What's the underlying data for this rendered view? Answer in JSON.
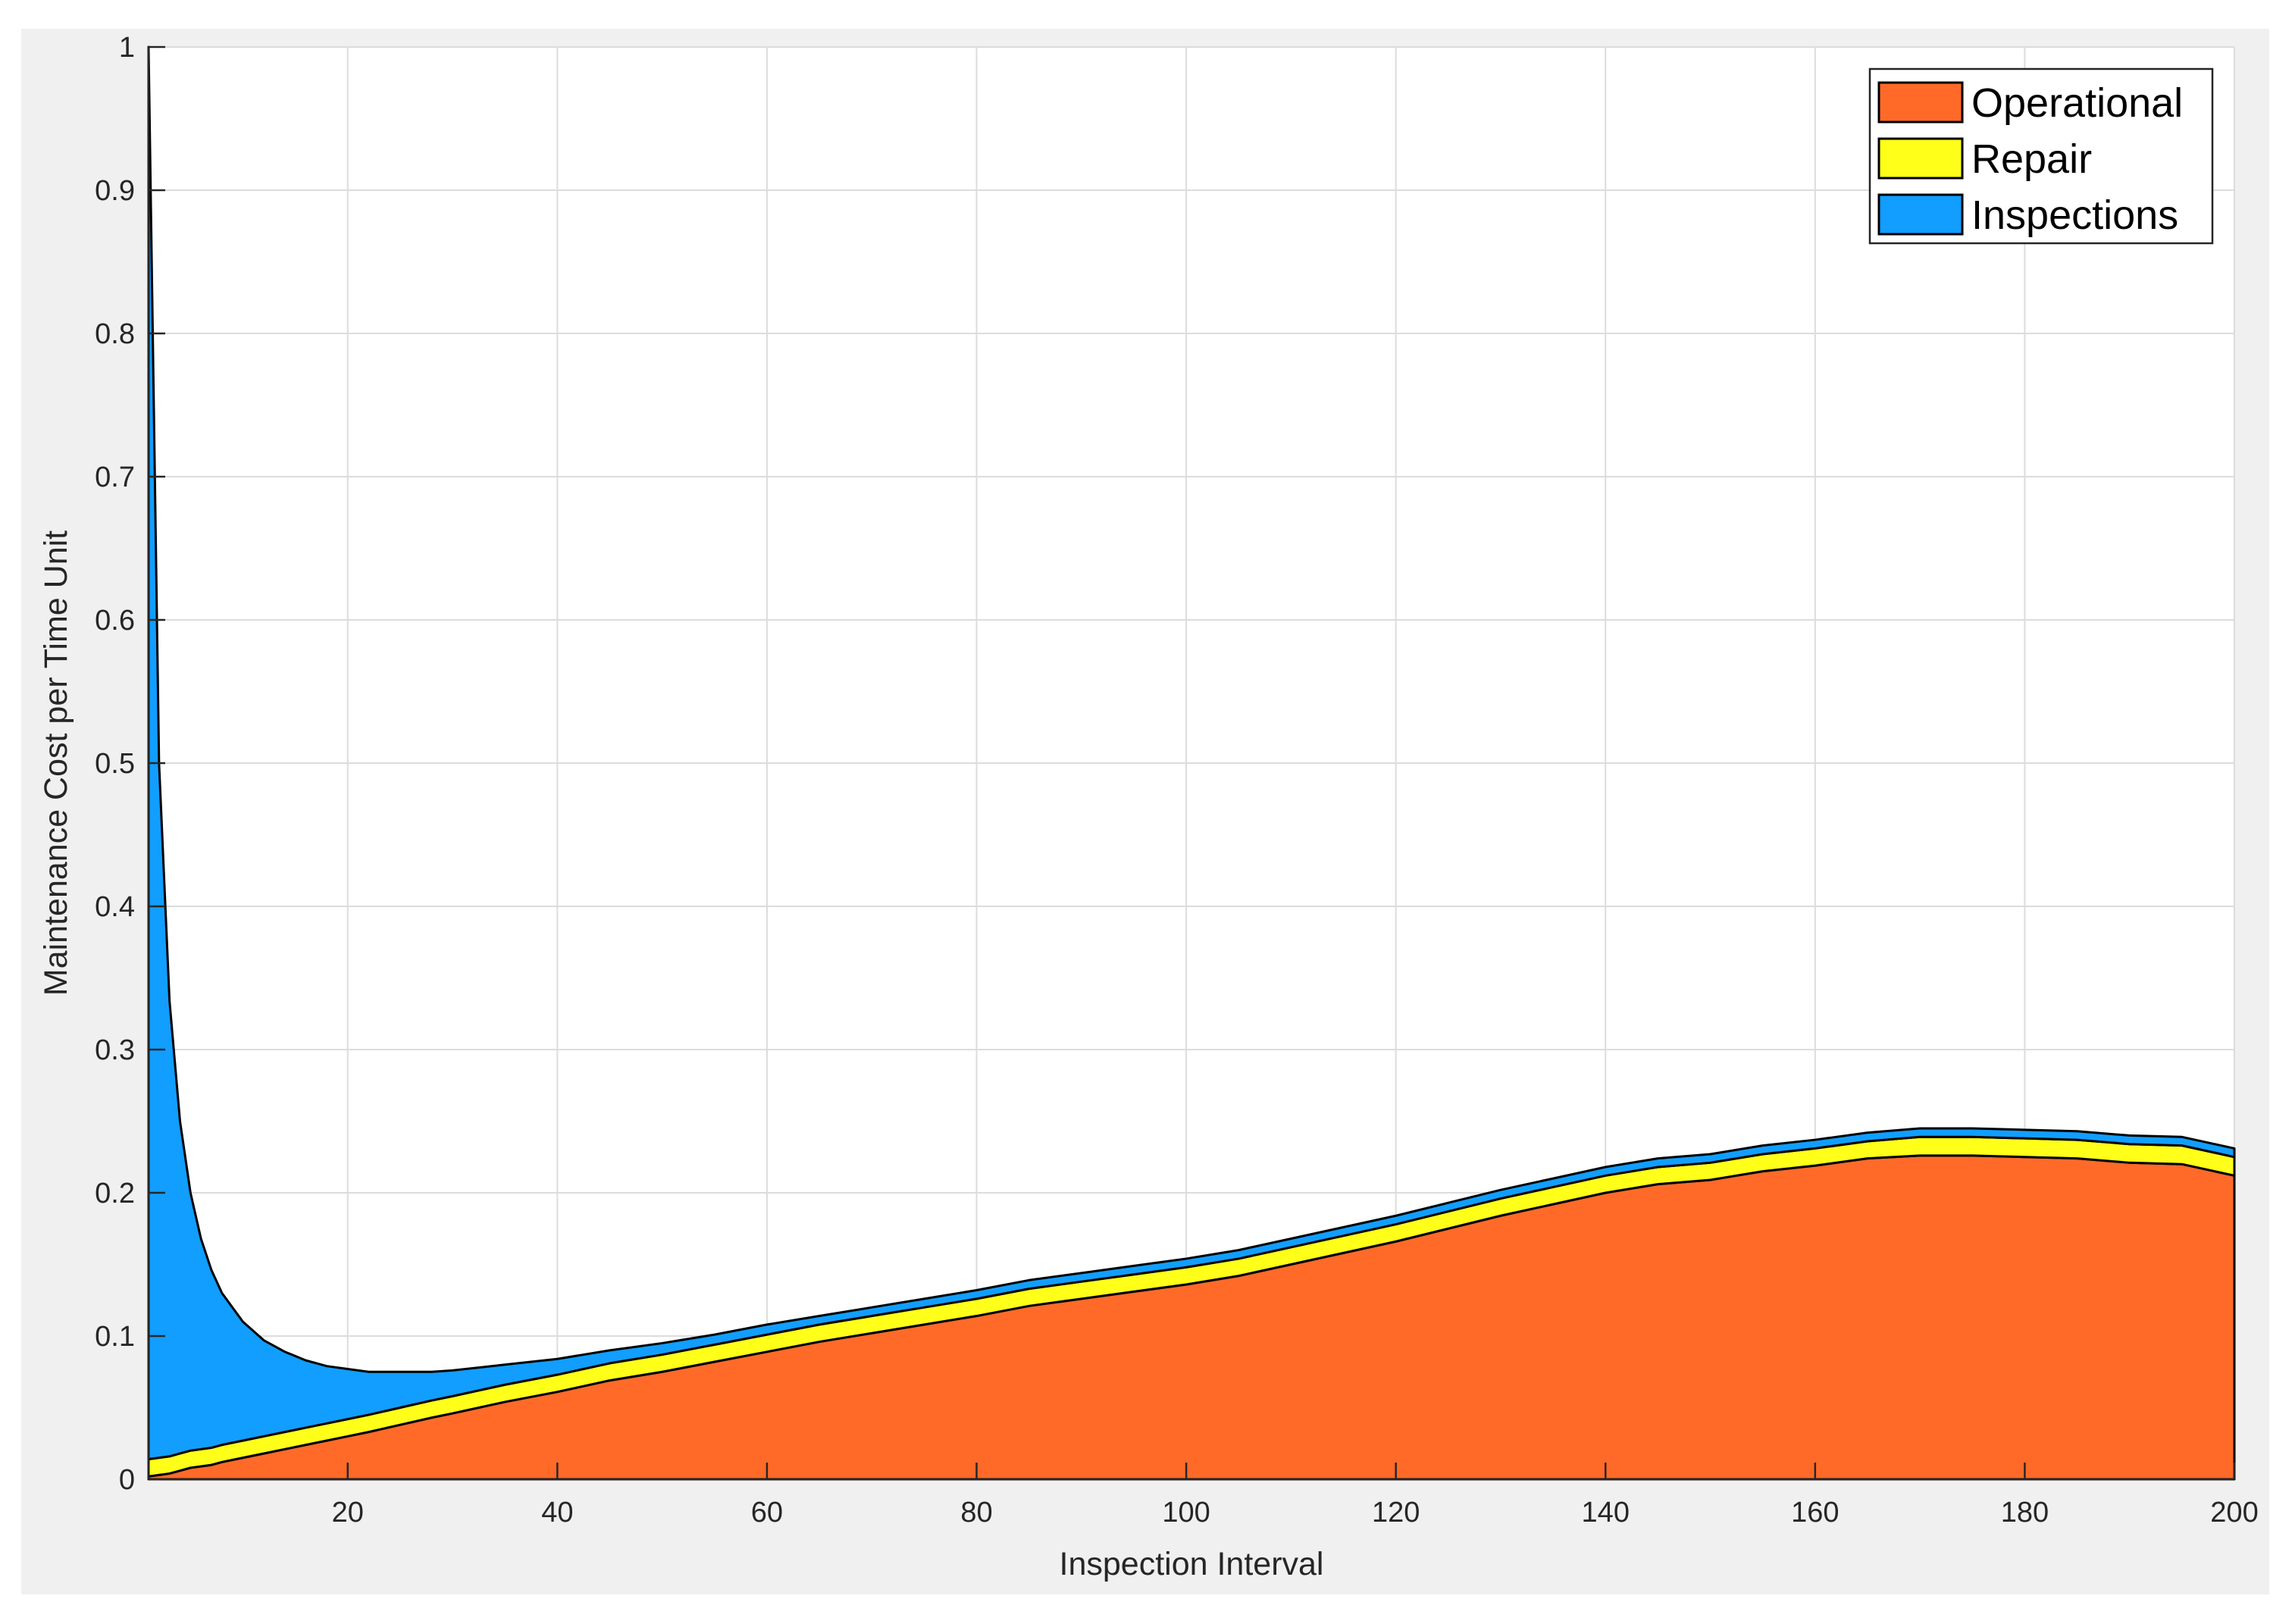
{
  "chart_data": {
    "type": "area",
    "stacked": true,
    "xlabel": "Inspection Interval",
    "ylabel": "Maintenance Cost per Time Unit",
    "xlim": [
      1,
      200
    ],
    "ylim": [
      0,
      1
    ],
    "xticks": [
      20,
      40,
      60,
      80,
      100,
      120,
      140,
      160,
      180,
      200
    ],
    "yticks": [
      0,
      0.1,
      0.2,
      0.3,
      0.4,
      0.5,
      0.6,
      0.7,
      0.8,
      0.9,
      1
    ],
    "ytick_labels": [
      "0",
      "0.1",
      "0.2",
      "0.3",
      "0.4",
      "0.5",
      "0.6",
      "0.7",
      "0.8",
      "0.9",
      "1"
    ],
    "grid": true,
    "legend_position": "top-right",
    "x": [
      1,
      2,
      3,
      4,
      5,
      6,
      7,
      8,
      10,
      12,
      14,
      16,
      18,
      20,
      22,
      25,
      28,
      30,
      35,
      40,
      45,
      50,
      55,
      60,
      65,
      70,
      75,
      80,
      85,
      90,
      95,
      100,
      105,
      110,
      115,
      120,
      125,
      130,
      135,
      140,
      145,
      150,
      155,
      160,
      165,
      170,
      175,
      180,
      185,
      190,
      195,
      200
    ],
    "series": [
      {
        "name": "Operational",
        "color": "#ff6a29",
        "values": [
          0.002,
          0.003,
          0.004,
          0.006,
          0.008,
          0.009,
          0.01,
          0.012,
          0.015,
          0.018,
          0.021,
          0.024,
          0.027,
          0.03,
          0.033,
          0.038,
          0.043,
          0.046,
          0.054,
          0.061,
          0.069,
          0.075,
          0.082,
          0.089,
          0.096,
          0.102,
          0.108,
          0.114,
          0.121,
          0.126,
          0.131,
          0.136,
          0.142,
          0.15,
          0.158,
          0.166,
          0.175,
          0.184,
          0.192,
          0.2,
          0.206,
          0.209,
          0.215,
          0.219,
          0.224,
          0.226,
          0.226,
          0.225,
          0.224,
          0.221,
          0.22,
          0.212
        ]
      },
      {
        "name": "Repair",
        "color": "#ffff1a",
        "values": [
          0.012,
          0.012,
          0.012,
          0.012,
          0.012,
          0.012,
          0.012,
          0.012,
          0.012,
          0.012,
          0.012,
          0.012,
          0.012,
          0.012,
          0.012,
          0.012,
          0.012,
          0.012,
          0.012,
          0.012,
          0.012,
          0.012,
          0.012,
          0.012,
          0.012,
          0.012,
          0.012,
          0.012,
          0.012,
          0.012,
          0.012,
          0.012,
          0.012,
          0.012,
          0.012,
          0.012,
          0.012,
          0.012,
          0.012,
          0.012,
          0.012,
          0.012,
          0.012,
          0.012,
          0.012,
          0.013,
          0.013,
          0.013,
          0.013,
          0.013,
          0.013,
          0.013
        ]
      },
      {
        "name": "Inspections",
        "color": "#119eff",
        "values": [
          0.986,
          0.485,
          0.318,
          0.232,
          0.18,
          0.147,
          0.124,
          0.106,
          0.083,
          0.067,
          0.056,
          0.047,
          0.04,
          0.035,
          0.03,
          0.025,
          0.02,
          0.018,
          0.014,
          0.011,
          0.009,
          0.008,
          0.007,
          0.007,
          0.006,
          0.006,
          0.006,
          0.006,
          0.006,
          0.006,
          0.006,
          0.006,
          0.006,
          0.006,
          0.006,
          0.006,
          0.006,
          0.006,
          0.006,
          0.006,
          0.006,
          0.006,
          0.006,
          0.006,
          0.006,
          0.006,
          0.006,
          0.006,
          0.006,
          0.006,
          0.006,
          0.006
        ]
      }
    ]
  }
}
